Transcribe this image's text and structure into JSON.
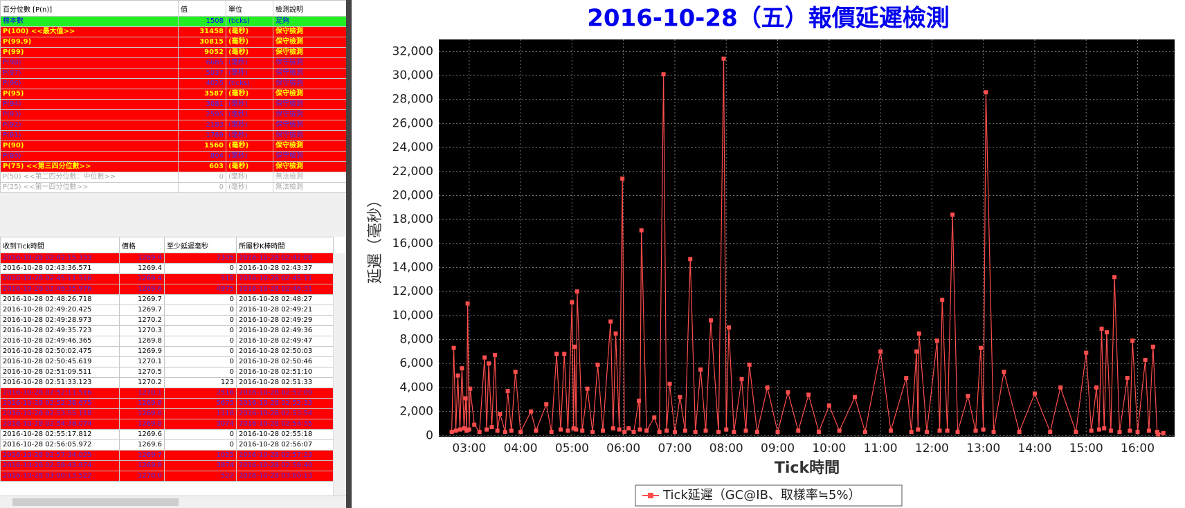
{
  "percentile_table": {
    "headers": [
      "百分位數 [P(n)]",
      "值",
      "單位",
      "檢測說明"
    ],
    "rows": [
      {
        "style": "green",
        "cells": [
          "標本數",
          "1508",
          "(ticks)",
          "足夠"
        ]
      },
      {
        "style": "red-yellow",
        "cells": [
          "P(100)  <<最大值>>",
          "31458",
          "(毫秒)",
          "保守檢測"
        ]
      },
      {
        "style": "red-yellow",
        "cells": [
          "P(99.9)",
          "30815",
          "(毫秒)",
          "保守檢測"
        ]
      },
      {
        "style": "red-yellow",
        "cells": [
          "P(99)",
          "9052",
          "(毫秒)",
          "保守檢測"
        ]
      },
      {
        "style": "red-blue",
        "cells": [
          "P(98)",
          "6685",
          "(毫秒)",
          "保守檢測"
        ]
      },
      {
        "style": "red-blue",
        "cells": [
          "P(97)",
          "5037",
          "(毫秒)",
          "保守檢測"
        ]
      },
      {
        "style": "red-blue",
        "cells": [
          "P(96)",
          "4025",
          "(ticks)",
          "保守檢測"
        ]
      },
      {
        "style": "red-yellow",
        "cells": [
          "P(95)",
          "3587",
          "(毫秒)",
          "保守檢測"
        ]
      },
      {
        "style": "red-blue",
        "cells": [
          "P(94)",
          "3081",
          "(毫秒)",
          "保守檢測"
        ]
      },
      {
        "style": "red-blue",
        "cells": [
          "P(93)",
          "2595",
          "(毫秒)",
          "保守檢測"
        ]
      },
      {
        "style": "red-blue",
        "cells": [
          "P(92)",
          "2183",
          "(毫秒)",
          "保守檢測"
        ]
      },
      {
        "style": "red-blue",
        "cells": [
          "P(91)",
          "1789",
          "(毫秒)",
          "保守檢測"
        ]
      },
      {
        "style": "red-yellow",
        "cells": [
          "P(90)",
          "1560",
          "(毫秒)",
          "保守檢測"
        ]
      },
      {
        "style": "red-blue",
        "cells": [
          "P(80)",
          "804",
          "(毫秒)",
          "保守檢測"
        ]
      },
      {
        "style": "red-yellow",
        "cells": [
          "P(75)  <<第三四分位數>>",
          "603",
          "(毫秒)",
          "保守檢測"
        ]
      },
      {
        "style": "gray",
        "cells": [
          "P(50)  <<第二四分位數：中位數>>",
          "0",
          "(毫秒)",
          "無法檢測"
        ]
      },
      {
        "style": "gray",
        "cells": [
          "P(25)  <<第一四分位數>>",
          "0",
          "(毫秒)",
          "無法檢測"
        ]
      }
    ]
  },
  "tick_table": {
    "headers": [
      "收到Tick時間",
      "價格",
      "至少延遲毫秒",
      "所屬秒K棒時間"
    ],
    "rows": [
      {
        "alert": true,
        "cells": [
          "2016-10-28 02:42:15.333",
          "1269.4",
          "7335",
          "2016-10-28 02:42:08"
        ]
      },
      {
        "alert": false,
        "cells": [
          "2016-10-28 02:43:36.571",
          "1269.4",
          "0",
          "2016-10-28 02:43:37"
        ]
      },
      {
        "alert": true,
        "cells": [
          "2016-10-28 02:45:11.516",
          "1269.4",
          "515",
          "2016-10-28 02:45:11"
        ]
      },
      {
        "alert": true,
        "cells": [
          "2016-10-28 02:46:35.976",
          "1269.6",
          "4975",
          "2016-10-28 02:46:31"
        ]
      },
      {
        "alert": false,
        "cells": [
          "2016-10-28 02:48:26.718",
          "1269.7",
          "0",
          "2016-10-28 02:48:27"
        ]
      },
      {
        "alert": false,
        "cells": [
          "2016-10-28 02:49:20.425",
          "1269.7",
          "0",
          "2016-10-28 02:49:21"
        ]
      },
      {
        "alert": false,
        "cells": [
          "2016-10-28 02:49:28.973",
          "1270.2",
          "0",
          "2016-10-28 02:49:29"
        ]
      },
      {
        "alert": false,
        "cells": [
          "2016-10-28 02:49:35.723",
          "1270.3",
          "0",
          "2016-10-28 02:49:36"
        ]
      },
      {
        "alert": false,
        "cells": [
          "2016-10-28 02:49:46.365",
          "1269.8",
          "0",
          "2016-10-28 02:49:47"
        ]
      },
      {
        "alert": false,
        "cells": [
          "2016-10-28 02:50:02.475",
          "1269.9",
          "0",
          "2016-10-28 02:50:03"
        ]
      },
      {
        "alert": false,
        "cells": [
          "2016-10-28 02:50:45.619",
          "1270.1",
          "0",
          "2016-10-28 02:50:46"
        ]
      },
      {
        "alert": false,
        "cells": [
          "2016-10-28 02:51:09.511",
          "1270.5",
          "0",
          "2016-10-28 02:51:10"
        ]
      },
      {
        "alert": false,
        "cells": [
          "2016-10-28 02:51:33.123",
          "1270.2",
          "123",
          "2016-10-28 02:51:33"
        ]
      },
      {
        "alert": true,
        "cells": [
          "2016-10-28 02:52:11.516",
          "1270.1",
          "2516",
          "2016-10-28 02:52:09"
        ]
      },
      {
        "alert": true,
        "cells": [
          "2016-10-28 02:52:38.675",
          "1269.8",
          "5675",
          "2016-10-28 02:52:33"
        ]
      },
      {
        "alert": true,
        "cells": [
          "2016-10-28 02:53:55.118",
          "1269.8",
          "1118",
          "2016-10-28 02:53:54"
        ]
      },
      {
        "alert": true,
        "cells": [
          "2016-10-28 02:54:38.074",
          "1269.8",
          "3074",
          "2016-10-28 02:54:35"
        ]
      },
      {
        "alert": false,
        "cells": [
          "2016-10-28 02:55:17.812",
          "1269.6",
          "0",
          "2016-10-28 02:55:18"
        ]
      },
      {
        "alert": false,
        "cells": [
          "2016-10-28 02:56:05.972",
          "1269.6",
          "0",
          "2016-10-28 02:56:07"
        ]
      },
      {
        "alert": true,
        "cells": [
          "2016-10-28 02:57:34.025",
          "1269.7",
          "1025",
          "2016-10-28 02:57:23"
        ]
      },
      {
        "alert": true,
        "cells": [
          "2016-10-28 02:58:43.874",
          "1269.8",
          "3874",
          "2016-10-28 02:58:40"
        ]
      },
      {
        "alert": true,
        "cells": [
          "2016-10-28 03:00:13.522",
          "1270.0",
          "522",
          "2016-10-28 03:00:13"
        ]
      }
    ]
  },
  "chart_data": {
    "type": "line",
    "title": "2016-10-28（五）報價延遲檢測",
    "x_label": "Tick時間",
    "y_label": "延遲（毫秒）",
    "xlim": [
      2.41,
      16.72
    ],
    "xticks": [
      {
        "value": 3,
        "label": "03:00"
      },
      {
        "value": 4,
        "label": "04:00"
      },
      {
        "value": 5,
        "label": "05:00"
      },
      {
        "value": 6,
        "label": "06:00"
      },
      {
        "value": 7,
        "label": "07:00"
      },
      {
        "value": 8,
        "label": "08:00"
      },
      {
        "value": 9,
        "label": "09:00"
      },
      {
        "value": 10,
        "label": "10:00"
      },
      {
        "value": 11,
        "label": "11:00"
      },
      {
        "value": 12,
        "label": "12:00"
      },
      {
        "value": 13,
        "label": "13:00"
      },
      {
        "value": 14,
        "label": "14:00"
      },
      {
        "value": 15,
        "label": "15:00"
      },
      {
        "value": 16,
        "label": "16:00"
      }
    ],
    "ylim": [
      -100,
      33000
    ],
    "yticks": [
      0,
      {
        "value": 2000,
        "label": "2,000"
      },
      {
        "value": 4000,
        "label": "4,000"
      },
      {
        "value": 6000,
        "label": "6,000"
      },
      {
        "value": 8000,
        "label": "8,000"
      },
      {
        "value": 10000,
        "label": "10,000"
      },
      {
        "value": 12000,
        "label": "12,000"
      },
      {
        "value": 14000,
        "label": "14,000"
      },
      {
        "value": 16000,
        "label": "16,000"
      },
      {
        "value": 18000,
        "label": "18,000"
      },
      {
        "value": 20000,
        "label": "20,000"
      },
      {
        "value": 22000,
        "label": "22,000"
      },
      {
        "value": 24000,
        "label": "24,000"
      },
      {
        "value": 26000,
        "label": "26,000"
      },
      {
        "value": 28000,
        "label": "28,000"
      },
      {
        "value": 30000,
        "label": "30,000"
      },
      {
        "value": 32000,
        "label": "32,000"
      }
    ],
    "grid": true,
    "legend": "bottom",
    "series": [
      {
        "name": "Tick延遲（GC@IB、取樣率≒5%）",
        "color": "#ff4d4d",
        "x": [
          2.66,
          2.7,
          2.74,
          2.78,
          2.82,
          2.86,
          2.9,
          2.93,
          2.95,
          2.97,
          3.0,
          3.02,
          3.1,
          3.2,
          3.3,
          3.34,
          3.38,
          3.44,
          3.5,
          3.55,
          3.6,
          3.7,
          3.75,
          3.82,
          3.9,
          4.0,
          4.2,
          4.3,
          4.5,
          4.6,
          4.7,
          4.78,
          4.85,
          4.92,
          5.0,
          5.03,
          5.05,
          5.08,
          5.1,
          5.2,
          5.3,
          5.4,
          5.5,
          5.6,
          5.75,
          5.8,
          5.85,
          5.92,
          5.98,
          6.02,
          6.1,
          6.2,
          6.3,
          6.32,
          6.35,
          6.45,
          6.6,
          6.7,
          6.78,
          6.84,
          6.9,
          7.0,
          7.1,
          7.2,
          7.3,
          7.4,
          7.5,
          7.6,
          7.7,
          7.85,
          7.95,
          8.0,
          8.05,
          8.15,
          8.3,
          8.38,
          8.45,
          8.6,
          8.8,
          9.0,
          9.2,
          9.4,
          9.6,
          9.8,
          10.0,
          10.2,
          10.5,
          10.7,
          11.0,
          11.2,
          11.5,
          11.6,
          11.7,
          11.73,
          11.75,
          11.9,
          12.1,
          12.15,
          12.2,
          12.3,
          12.4,
          12.5,
          12.7,
          12.85,
          12.95,
          13.0,
          13.05,
          13.2,
          13.4,
          13.7,
          14.0,
          14.3,
          14.5,
          14.8,
          15.0,
          15.1,
          15.2,
          15.25,
          15.3,
          15.35,
          15.4,
          15.48,
          15.55,
          15.65,
          15.8,
          15.85,
          15.9,
          16.0,
          16.15,
          16.22,
          16.3,
          16.38,
          16.4,
          16.5
        ],
        "values": [
          300,
          7300,
          400,
          5000,
          500,
          5600,
          600,
          3100,
          400,
          11000,
          500,
          3900,
          900,
          300,
          6500,
          500,
          6000,
          700,
          6700,
          400,
          1800,
          300,
          3700,
          400,
          5300,
          300,
          2000,
          400,
          2600,
          300,
          6800,
          500,
          6800,
          400,
          11100,
          600,
          7400,
          500,
          12000,
          400,
          3900,
          300,
          5900,
          400,
          9500,
          600,
          8500,
          500,
          21400,
          300,
          600,
          300,
          2900,
          500,
          17100,
          400,
          1500,
          300,
          30100,
          400,
          4300,
          300,
          3200,
          400,
          14700,
          300,
          5500,
          400,
          9600,
          300,
          31400,
          500,
          9000,
          300,
          4700,
          400,
          5900,
          300,
          4000,
          300,
          3600,
          400,
          3400,
          300,
          2500,
          400,
          3200,
          300,
          7000,
          400,
          4800,
          300,
          7000,
          500,
          8500,
          300,
          7900,
          400,
          11300,
          400,
          18400,
          300,
          3300,
          400,
          7300,
          500,
          28600,
          300,
          5300,
          300,
          3500,
          300,
          4000,
          300,
          6900,
          400,
          4000,
          500,
          8900,
          600,
          8600,
          400,
          13200,
          300,
          4800,
          400,
          7900,
          300,
          6300,
          400,
          7400,
          300,
          100,
          200
        ]
      }
    ]
  }
}
